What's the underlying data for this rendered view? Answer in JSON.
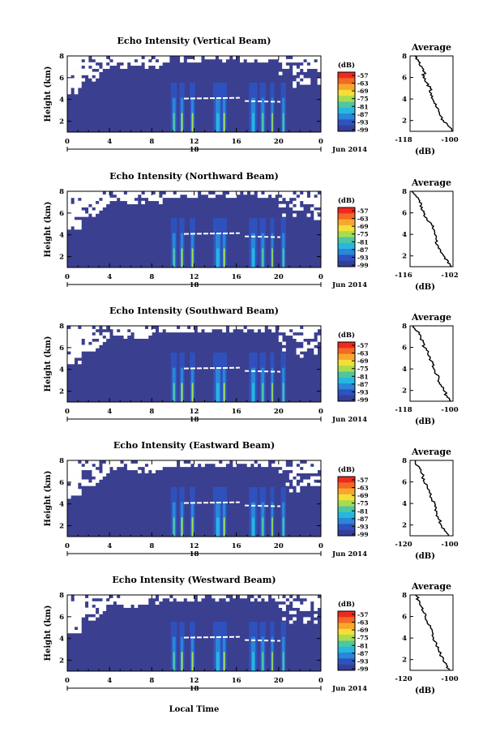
{
  "figure": {
    "x_axis_label": "Local Time",
    "date_label": "Jun 2014",
    "date_marker": "18"
  },
  "chart_data": [
    {
      "type": "heatmap",
      "title": "Echo Intensity (Vertical Beam)",
      "ylabel": "Height (km)",
      "xlabel": "Local Time",
      "x_ticks": [
        "0",
        "4",
        "8",
        "12",
        "16",
        "20",
        "0"
      ],
      "y_ticks": [
        "2",
        "4",
        "6",
        "8"
      ],
      "ylim": [
        1,
        8
      ],
      "xlim_hours": [
        0,
        24
      ],
      "colorbar": {
        "unit": "(dB)",
        "ticks": [
          "-57",
          "-63",
          "-69",
          "-75",
          "-81",
          "-87",
          "-93",
          "-99"
        ]
      },
      "profile": {
        "title": "Average",
        "xlabel": "(dB)",
        "x_ticks": [
          "-118",
          "-100"
        ],
        "y_ticks": [
          "2",
          "4",
          "6",
          "8"
        ],
        "xlim": [
          -118,
          -100
        ],
        "ylim": [
          1,
          8
        ],
        "height": [
          1.0,
          1.5,
          2.0,
          2.5,
          3.0,
          3.5,
          4.0,
          4.5,
          5.0,
          5.5,
          6.0,
          6.5,
          7.0,
          7.5,
          8.0
        ],
        "value": [
          -100.5,
          -102,
          -104,
          -105.5,
          -106,
          -107,
          -108.5,
          -109,
          -109.5,
          -111,
          -112.5,
          -112,
          -113,
          -114.5,
          -116
        ]
      }
    },
    {
      "type": "heatmap",
      "title": "Echo Intensity (Northward Beam)",
      "ylabel": "Height (km)",
      "x_ticks": [
        "0",
        "4",
        "8",
        "12",
        "16",
        "20",
        "0"
      ],
      "y_ticks": [
        "2",
        "4",
        "6",
        "8"
      ],
      "ylim": [
        1,
        8
      ],
      "xlim_hours": [
        0,
        24
      ],
      "colorbar": {
        "unit": "(dB)",
        "ticks": [
          "-57",
          "-63",
          "-69",
          "-75",
          "-81",
          "-87",
          "-93",
          "-99"
        ]
      },
      "profile": {
        "title": "Average",
        "xlabel": "(dB)",
        "x_ticks": [
          "-116",
          "-102"
        ],
        "y_ticks": [
          "2",
          "4",
          "6",
          "8"
        ],
        "xlim": [
          -116,
          -102
        ],
        "ylim": [
          1,
          8
        ],
        "height": [
          1.0,
          1.5,
          2.0,
          2.5,
          3.0,
          3.5,
          4.0,
          4.5,
          5.0,
          5.5,
          6.0,
          6.5,
          7.0,
          7.5,
          8.0
        ],
        "value": [
          -102.5,
          -103.5,
          -105,
          -106,
          -107,
          -107.5,
          -108,
          -108.5,
          -109,
          -110.5,
          -111.5,
          -112,
          -113,
          -114,
          -115.5
        ]
      }
    },
    {
      "type": "heatmap",
      "title": "Echo Intensity (Southward Beam)",
      "ylabel": "Height (km)",
      "x_ticks": [
        "0",
        "4",
        "8",
        "12",
        "16",
        "20",
        "0"
      ],
      "y_ticks": [
        "2",
        "4",
        "6",
        "8"
      ],
      "ylim": [
        1,
        8
      ],
      "xlim_hours": [
        0,
        24
      ],
      "colorbar": {
        "unit": "(dB)",
        "ticks": [
          "-57",
          "-63",
          "-69",
          "-75",
          "-81",
          "-87",
          "-93",
          "-99"
        ]
      },
      "profile": {
        "title": "Average",
        "xlabel": "(dB)",
        "x_ticks": [
          "-118",
          "-100"
        ],
        "y_ticks": [
          "2",
          "4",
          "6",
          "8"
        ],
        "xlim": [
          -118,
          -100
        ],
        "ylim": [
          1,
          8
        ],
        "height": [
          1.0,
          1.5,
          2.0,
          2.5,
          3.0,
          3.5,
          4.0,
          4.5,
          5.0,
          5.5,
          6.0,
          6.5,
          7.0,
          7.5,
          8.0
        ],
        "value": [
          -101,
          -102.5,
          -104,
          -105,
          -106,
          -107,
          -108,
          -108.5,
          -109.5,
          -110.5,
          -112,
          -112.5,
          -113.5,
          -115,
          -116.5
        ]
      }
    },
    {
      "type": "heatmap",
      "title": "Echo Intensity (Eastward Beam)",
      "ylabel": "Height (km)",
      "x_ticks": [
        "0",
        "4",
        "8",
        "12",
        "16",
        "20",
        "0"
      ],
      "y_ticks": [
        "2",
        "4",
        "6",
        "8"
      ],
      "ylim": [
        1,
        8
      ],
      "xlim_hours": [
        0,
        24
      ],
      "colorbar": {
        "unit": "(dB)",
        "ticks": [
          "-57",
          "-63",
          "-69",
          "-75",
          "-81",
          "-87",
          "-93",
          "-99"
        ]
      },
      "profile": {
        "title": "Average",
        "xlabel": "(dB)",
        "x_ticks": [
          "-120",
          "-100"
        ],
        "y_ticks": [
          "2",
          "4",
          "6",
          "8"
        ],
        "xlim": [
          -120,
          -100
        ],
        "ylim": [
          1,
          8
        ],
        "height": [
          1.0,
          1.5,
          2.0,
          2.5,
          3.0,
          3.5,
          4.0,
          4.5,
          5.0,
          5.5,
          6.0,
          6.5,
          7.0,
          7.5,
          8.0
        ],
        "value": [
          -102,
          -104,
          -105.5,
          -106.5,
          -107.5,
          -108,
          -108.5,
          -110,
          -111,
          -112,
          -113.5,
          -114,
          -115,
          -116.5,
          -117.5
        ]
      }
    },
    {
      "type": "heatmap",
      "title": "Echo Intensity (Westward Beam)",
      "ylabel": "Height (km)",
      "x_ticks": [
        "0",
        "4",
        "8",
        "12",
        "16",
        "20",
        "0"
      ],
      "y_ticks": [
        "2",
        "4",
        "6",
        "8"
      ],
      "ylim": [
        1,
        8
      ],
      "xlim_hours": [
        0,
        24
      ],
      "colorbar": {
        "unit": "(dB)",
        "ticks": [
          "-57",
          "-63",
          "-69",
          "-75",
          "-81",
          "-87",
          "-93",
          "-99"
        ]
      },
      "profile": {
        "title": "Average",
        "xlabel": "(dB)",
        "x_ticks": [
          "-120",
          "-100"
        ],
        "y_ticks": [
          "2",
          "4",
          "6",
          "8"
        ],
        "xlim": [
          -120,
          -100
        ],
        "ylim": [
          1,
          8
        ],
        "height": [
          1.0,
          1.5,
          2.0,
          2.5,
          3.0,
          3.5,
          4.0,
          4.5,
          5.0,
          5.5,
          6.0,
          6.5,
          7.0,
          7.5,
          8.0
        ],
        "value": [
          -101.5,
          -103,
          -104.5,
          -106,
          -107,
          -107.5,
          -109,
          -109.5,
          -110.5,
          -112,
          -113,
          -114,
          -115,
          -116,
          -117.5
        ]
      }
    }
  ],
  "colors": {
    "background": "#3a3f8f",
    "empty": "#ffffff",
    "axis": "#000000",
    "colormap": [
      "#ee2a1e",
      "#f26a24",
      "#f9a72c",
      "#f4de3a",
      "#a8dc4e",
      "#4fc7a0",
      "#26b7e0",
      "#2a86d8",
      "#2e52c0",
      "#353f98"
    ]
  }
}
